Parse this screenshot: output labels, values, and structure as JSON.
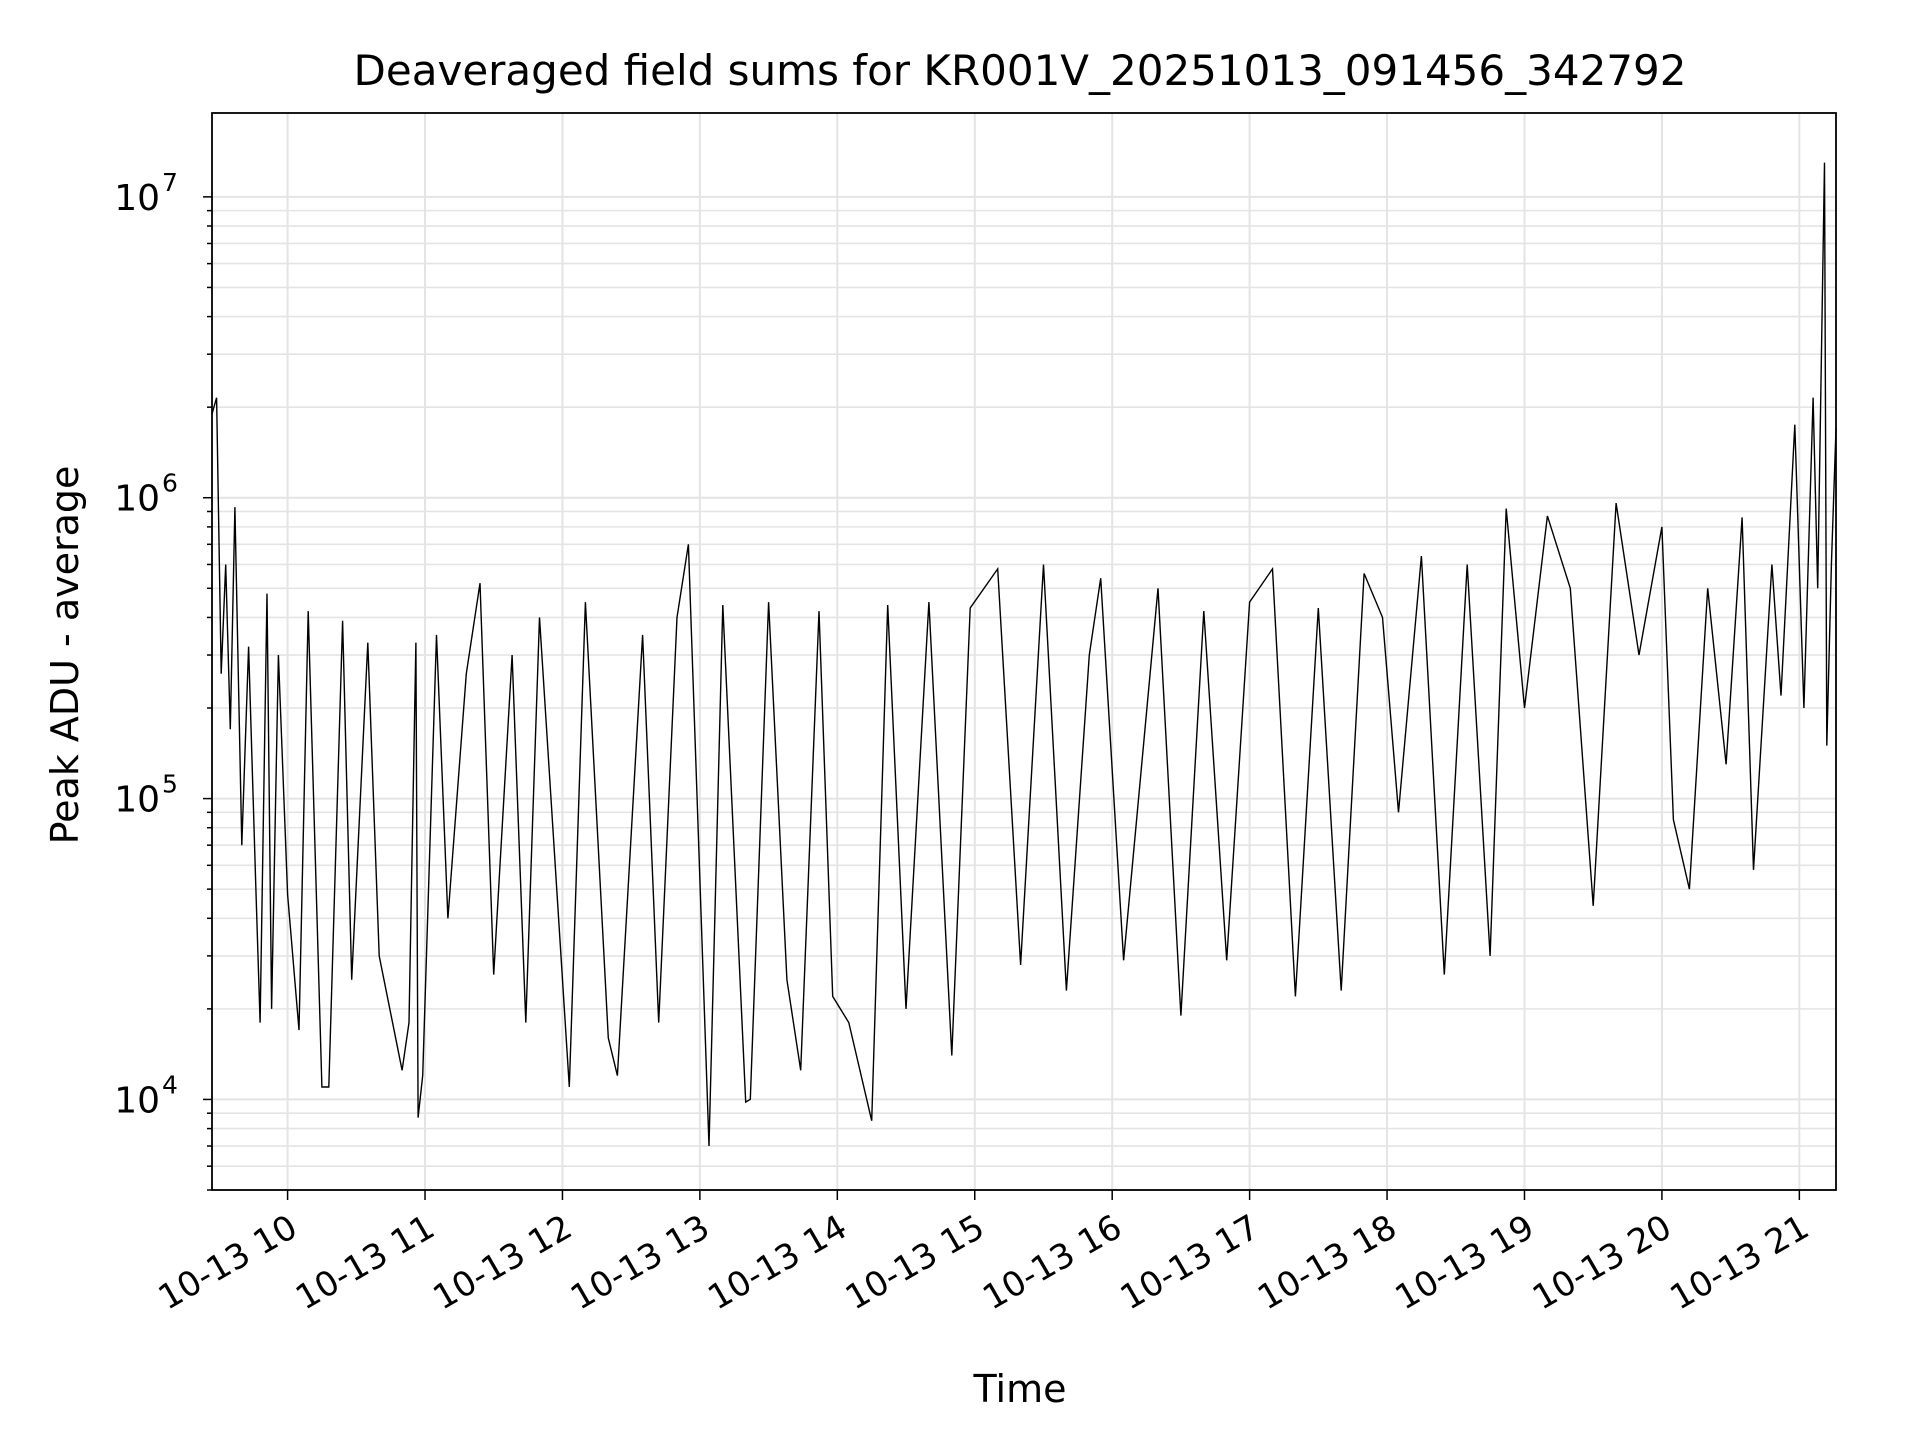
{
  "chart_data": {
    "type": "line",
    "title": "Deaveraged field sums for KR001V_20251013_091456_342792",
    "xlabel": "Time",
    "ylabel": "Peak ADU - average",
    "yscale": "log",
    "ylim": [
      5000,
      19000000
    ],
    "xlim": [
      "2025-10-13T09:27",
      "2025-10-13T21:16"
    ],
    "grid": true,
    "x_tick_labels": [
      "10-13 10",
      "10-13 11",
      "10-13 12",
      "10-13 13",
      "10-13 14",
      "10-13 15",
      "10-13 16",
      "10-13 17",
      "10-13 18",
      "10-13 19",
      "10-13 20",
      "10-13 21"
    ],
    "x_ticks": [
      "2025-10-13T10:00",
      "2025-10-13T11:00",
      "2025-10-13T12:00",
      "2025-10-13T13:00",
      "2025-10-13T14:00",
      "2025-10-13T15:00",
      "2025-10-13T16:00",
      "2025-10-13T17:00",
      "2025-10-13T18:00",
      "2025-10-13T19:00",
      "2025-10-13T20:00",
      "2025-10-13T21:00"
    ],
    "y_ticks": [
      {
        "base": "10",
        "exp": "4",
        "value": 10000
      },
      {
        "base": "10",
        "exp": "5",
        "value": 100000
      },
      {
        "base": "10",
        "exp": "6",
        "value": 1000000
      },
      {
        "base": "10",
        "exp": "7",
        "value": 10000000
      }
    ],
    "series": [
      {
        "color": "#000000",
        "points": [
          [
            "2025-10-13T09:27",
            1900000
          ],
          [
            "2025-10-13T09:29",
            2150000
          ],
          [
            "2025-10-13T09:31",
            260000
          ],
          [
            "2025-10-13T09:33",
            600000
          ],
          [
            "2025-10-13T09:35",
            170000
          ],
          [
            "2025-10-13T09:37",
            930000
          ],
          [
            "2025-10-13T09:40",
            70000
          ],
          [
            "2025-10-13T09:43",
            320000
          ],
          [
            "2025-10-13T09:46",
            55000
          ],
          [
            "2025-10-13T09:48",
            18000
          ],
          [
            "2025-10-13T09:51",
            480000
          ],
          [
            "2025-10-13T09:53",
            20000
          ],
          [
            "2025-10-13T09:56",
            300000
          ],
          [
            "2025-10-13T10:00",
            48000
          ],
          [
            "2025-10-13T10:05",
            17000
          ],
          [
            "2025-10-13T10:09",
            420000
          ],
          [
            "2025-10-13T10:15",
            11000
          ],
          [
            "2025-10-13T10:18",
            11000
          ],
          [
            "2025-10-13T10:24",
            390000
          ],
          [
            "2025-10-13T10:28",
            25000
          ],
          [
            "2025-10-13T10:35",
            330000
          ],
          [
            "2025-10-13T10:40",
            30000
          ],
          [
            "2025-10-13T10:50",
            12500
          ],
          [
            "2025-10-13T10:53",
            18000
          ],
          [
            "2025-10-13T10:56",
            330000
          ],
          [
            "2025-10-13T10:57",
            8700
          ],
          [
            "2025-10-13T10:59",
            12000
          ],
          [
            "2025-10-13T11:05",
            350000
          ],
          [
            "2025-10-13T11:10",
            40000
          ],
          [
            "2025-10-13T11:18",
            260000
          ],
          [
            "2025-10-13T11:24",
            520000
          ],
          [
            "2025-10-13T11:30",
            26000
          ],
          [
            "2025-10-13T11:38",
            300000
          ],
          [
            "2025-10-13T11:44",
            18000
          ],
          [
            "2025-10-13T11:50",
            400000
          ],
          [
            "2025-10-13T12:03",
            11000
          ],
          [
            "2025-10-13T12:10",
            450000
          ],
          [
            "2025-10-13T12:20",
            16000
          ],
          [
            "2025-10-13T12:24",
            12000
          ],
          [
            "2025-10-13T12:35",
            350000
          ],
          [
            "2025-10-13T12:42",
            18000
          ],
          [
            "2025-10-13T12:50",
            400000
          ],
          [
            "2025-10-13T12:55",
            700000
          ],
          [
            "2025-10-13T13:04",
            7000
          ],
          [
            "2025-10-13T13:10",
            440000
          ],
          [
            "2025-10-13T13:20",
            9800
          ],
          [
            "2025-10-13T13:22",
            10000
          ],
          [
            "2025-10-13T13:30",
            450000
          ],
          [
            "2025-10-13T13:38",
            25000
          ],
          [
            "2025-10-13T13:44",
            12500
          ],
          [
            "2025-10-13T13:52",
            420000
          ],
          [
            "2025-10-13T13:58",
            22000
          ],
          [
            "2025-10-13T14:05",
            18000
          ],
          [
            "2025-10-13T14:15",
            8500
          ],
          [
            "2025-10-13T14:22",
            440000
          ],
          [
            "2025-10-13T14:30",
            20000
          ],
          [
            "2025-10-13T14:40",
            450000
          ],
          [
            "2025-10-13T14:50",
            14000
          ],
          [
            "2025-10-13T14:58",
            430000
          ],
          [
            "2025-10-13T15:10",
            580000
          ],
          [
            "2025-10-13T15:20",
            28000
          ],
          [
            "2025-10-13T15:30",
            600000
          ],
          [
            "2025-10-13T15:40",
            23000
          ],
          [
            "2025-10-13T15:50",
            300000
          ],
          [
            "2025-10-13T15:55",
            540000
          ],
          [
            "2025-10-13T16:05",
            29000
          ],
          [
            "2025-10-13T16:20",
            500000
          ],
          [
            "2025-10-13T16:30",
            19000
          ],
          [
            "2025-10-13T16:40",
            420000
          ],
          [
            "2025-10-13T16:50",
            29000
          ],
          [
            "2025-10-13T17:00",
            450000
          ],
          [
            "2025-10-13T17:10",
            580000
          ],
          [
            "2025-10-13T17:20",
            22000
          ],
          [
            "2025-10-13T17:30",
            430000
          ],
          [
            "2025-10-13T17:40",
            23000
          ],
          [
            "2025-10-13T17:50",
            560000
          ],
          [
            "2025-10-13T17:58",
            400000
          ],
          [
            "2025-10-13T18:05",
            90000
          ],
          [
            "2025-10-13T18:15",
            640000
          ],
          [
            "2025-10-13T18:25",
            26000
          ],
          [
            "2025-10-13T18:35",
            600000
          ],
          [
            "2025-10-13T18:45",
            30000
          ],
          [
            "2025-10-13T18:52",
            920000
          ],
          [
            "2025-10-13T19:00",
            200000
          ],
          [
            "2025-10-13T19:10",
            870000
          ],
          [
            "2025-10-13T19:20",
            500000
          ],
          [
            "2025-10-13T19:30",
            44000
          ],
          [
            "2025-10-13T19:40",
            960000
          ],
          [
            "2025-10-13T19:50",
            300000
          ],
          [
            "2025-10-13T20:00",
            800000
          ],
          [
            "2025-10-13T20:05",
            85000
          ],
          [
            "2025-10-13T20:12",
            50000
          ],
          [
            "2025-10-13T20:20",
            500000
          ],
          [
            "2025-10-13T20:28",
            130000
          ],
          [
            "2025-10-13T20:35",
            860000
          ],
          [
            "2025-10-13T20:40",
            58000
          ],
          [
            "2025-10-13T20:48",
            600000
          ],
          [
            "2025-10-13T20:52",
            220000
          ],
          [
            "2025-10-13T20:58",
            1750000
          ],
          [
            "2025-10-13T21:02",
            200000
          ],
          [
            "2025-10-13T21:06",
            2150000
          ],
          [
            "2025-10-13T21:08",
            500000
          ],
          [
            "2025-10-13T21:11",
            13000000
          ],
          [
            "2025-10-13T21:12",
            150000
          ],
          [
            "2025-10-13T21:14",
            600000
          ],
          [
            "2025-10-13T21:16",
            1700000
          ]
        ]
      }
    ]
  }
}
